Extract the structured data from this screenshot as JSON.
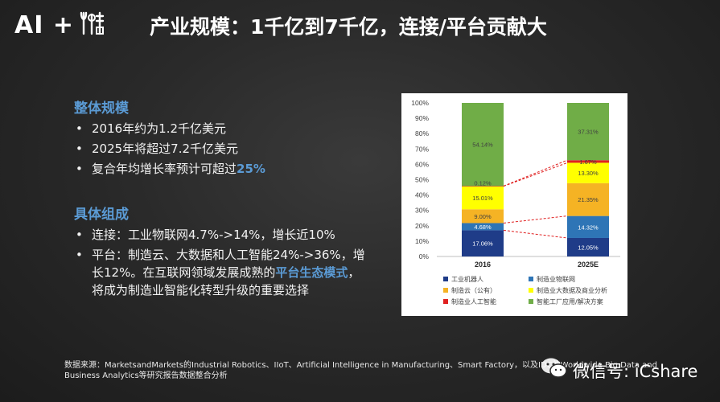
{
  "logo": {
    "text": "AI +"
  },
  "title": "产业规模：1千亿到7千亿，连接/平台贡献大",
  "section1": {
    "heading": "整体规模",
    "bullets": [
      {
        "pre": "2016年约为1.2千亿美元",
        "hl": "",
        "post": ""
      },
      {
        "pre": "2025年将超过7.2千亿美元",
        "hl": "",
        "post": ""
      },
      {
        "pre": "复合年均增长率预计可超过",
        "hl": "25%",
        "post": ""
      }
    ]
  },
  "section2": {
    "heading": "具体组成",
    "bullets": [
      {
        "pre": "连接：工业物联网4.7%->14%，增长近10%",
        "hl": "",
        "post": ""
      },
      {
        "pre": "平台：制造云、大数据和人工智能24%->36%，增长12%。在互联网领域发展成熟的",
        "hl": "平台生态模式",
        "post": "，将成为制造业智能化转型升级的重要选择"
      }
    ]
  },
  "chart_data": {
    "type": "bar",
    "stacked": true,
    "categories": [
      "2016",
      "2025E"
    ],
    "ylim": [
      0,
      100
    ],
    "yticks": [
      "0%",
      "10%",
      "20%",
      "30%",
      "40%",
      "50%",
      "60%",
      "70%",
      "80%",
      "90%",
      "100%"
    ],
    "series": [
      {
        "name": "工业机器人",
        "color": "#1f3c88",
        "values": [
          17.06,
          12.05
        ],
        "labels": [
          "17.06%",
          "12.05%"
        ]
      },
      {
        "name": "制造业物联网",
        "color": "#2e75b6",
        "values": [
          4.68,
          14.32
        ],
        "labels": [
          "4.68%",
          "14.32%"
        ]
      },
      {
        "name": "制造云（公有）",
        "color": "#f5b324",
        "values": [
          9.0,
          21.35
        ],
        "labels": [
          "9.00%",
          "21.35%"
        ]
      },
      {
        "name": "制造业大数据及商业分析",
        "color": "#ffff00",
        "values": [
          15.01,
          13.3
        ],
        "labels": [
          "15.01%",
          "13.30%"
        ]
      },
      {
        "name": "制造业人工智能",
        "color": "#e02020",
        "values": [
          0.12,
          1.67
        ],
        "labels": [
          "0.12%",
          "1.67%"
        ]
      },
      {
        "name": "智能工厂应用/解决方案",
        "color": "#70ad47",
        "values": [
          54.14,
          37.31
        ],
        "labels": [
          "54.14%",
          "37.31%"
        ]
      }
    ]
  },
  "source": "数据来源：MarketsandMarkets的Industrial Robotics、IIoT、Artificial Intelligence in Manufacturing、Smart Factory，以及IDC的Worldwide Big Data and Business Analytics等研究报告数据整合分析",
  "watermark": "微信号: iCshare"
}
